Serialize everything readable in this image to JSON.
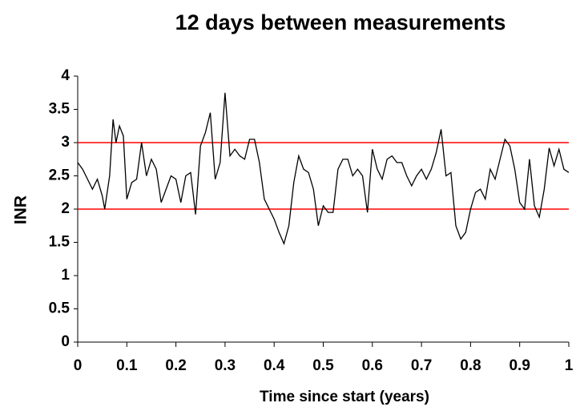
{
  "chart_data": {
    "type": "line",
    "title": "12 days between measurements",
    "xlabel": "Time since start (years)",
    "ylabel": "INR",
    "color": "#000000",
    "x": [
      0,
      0.01,
      0.02,
      0.03,
      0.04,
      0.05,
      0.055,
      0.065,
      0.072,
      0.078,
      0.085,
      0.093,
      0.1,
      0.11,
      0.12,
      0.13,
      0.14,
      0.15,
      0.16,
      0.17,
      0.18,
      0.19,
      0.2,
      0.21,
      0.22,
      0.23,
      0.24,
      0.25,
      0.26,
      0.27,
      0.28,
      0.29,
      0.3,
      0.31,
      0.32,
      0.33,
      0.34,
      0.35,
      0.36,
      0.37,
      0.38,
      0.39,
      0.4,
      0.41,
      0.42,
      0.43,
      0.44,
      0.45,
      0.46,
      0.47,
      0.48,
      0.49,
      0.5,
      0.51,
      0.52,
      0.53,
      0.54,
      0.55,
      0.56,
      0.57,
      0.58,
      0.59,
      0.6,
      0.61,
      0.62,
      0.63,
      0.64,
      0.65,
      0.66,
      0.67,
      0.68,
      0.69,
      0.7,
      0.71,
      0.72,
      0.73,
      0.74,
      0.75,
      0.76,
      0.77,
      0.78,
      0.79,
      0.8,
      0.81,
      0.82,
      0.83,
      0.84,
      0.85,
      0.86,
      0.87,
      0.88,
      0.89,
      0.9,
      0.91,
      0.92,
      0.93,
      0.94,
      0.95,
      0.96,
      0.97,
      0.98,
      0.99,
      1.0
    ],
    "values": [
      2.7,
      2.6,
      2.45,
      2.3,
      2.45,
      2.2,
      2.0,
      2.5,
      3.35,
      3.0,
      3.25,
      3.1,
      2.15,
      2.4,
      2.45,
      3.0,
      2.5,
      2.75,
      2.6,
      2.1,
      2.3,
      2.5,
      2.45,
      2.1,
      2.5,
      2.55,
      1.92,
      2.95,
      3.15,
      3.45,
      2.45,
      2.7,
      3.75,
      2.8,
      2.9,
      2.8,
      2.75,
      3.05,
      3.05,
      2.7,
      2.15,
      2.0,
      1.85,
      1.65,
      1.48,
      1.75,
      2.4,
      2.8,
      2.6,
      2.55,
      2.3,
      1.75,
      2.05,
      1.95,
      1.95,
      2.6,
      2.75,
      2.75,
      2.5,
      2.6,
      2.5,
      1.95,
      2.9,
      2.6,
      2.45,
      2.75,
      2.8,
      2.7,
      2.7,
      2.5,
      2.35,
      2.5,
      2.6,
      2.45,
      2.6,
      2.85,
      3.2,
      2.5,
      2.55,
      1.75,
      1.55,
      1.65,
      2.0,
      2.25,
      2.3,
      2.15,
      2.6,
      2.45,
      2.75,
      3.05,
      2.95,
      2.6,
      2.1,
      2.0,
      2.75,
      2.05,
      1.88,
      2.3,
      2.92,
      2.65,
      2.9,
      2.6,
      2.55
    ],
    "xlim": [
      0,
      1
    ],
    "xticks": [
      0,
      0.1,
      0.2,
      0.3,
      0.4,
      0.5,
      0.6,
      0.7,
      0.8,
      0.9,
      1
    ],
    "ylim": [
      0,
      4
    ],
    "yticks": [
      0,
      0.5,
      1,
      1.5,
      2,
      2.5,
      3,
      3.5,
      4
    ],
    "grid": false,
    "reference_lines": [
      {
        "value": 2,
        "color": "#ff0000"
      },
      {
        "value": 3,
        "color": "#ff0000"
      }
    ]
  }
}
